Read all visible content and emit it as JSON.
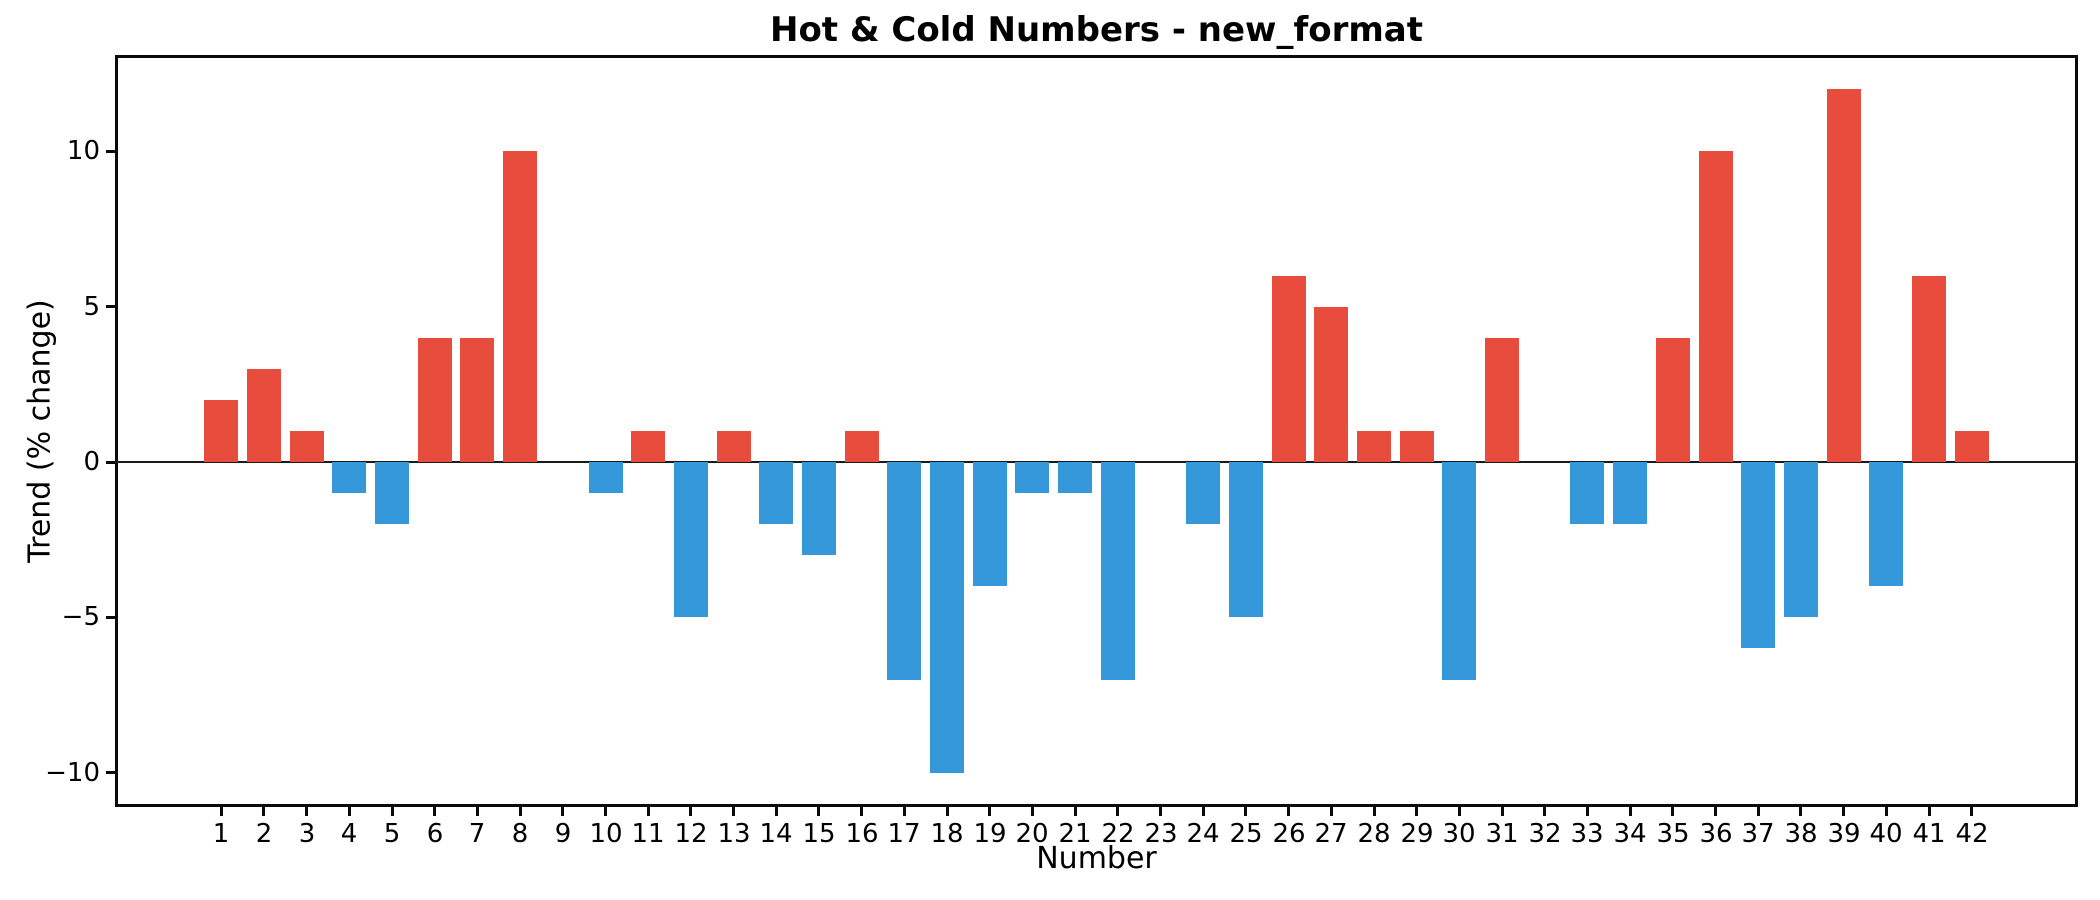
{
  "chart_data": {
    "type": "bar",
    "title": "Hot & Cold Numbers - new_format",
    "xlabel": "Number",
    "ylabel": "Trend (% change)",
    "categories": [
      1,
      2,
      3,
      4,
      5,
      6,
      7,
      8,
      9,
      10,
      11,
      12,
      13,
      14,
      15,
      16,
      17,
      18,
      19,
      20,
      21,
      22,
      23,
      24,
      25,
      26,
      27,
      28,
      29,
      30,
      31,
      32,
      33,
      34,
      35,
      36,
      37,
      38,
      39,
      40,
      41,
      42
    ],
    "values": [
      2,
      3,
      1,
      -1,
      -2,
      4,
      4,
      10,
      0,
      -1,
      1,
      -5,
      1,
      -2,
      -3,
      1,
      -7,
      -10,
      -4,
      -1,
      -1,
      -7,
      0,
      -2,
      -5,
      6,
      5,
      1,
      1,
      -7,
      4,
      0,
      -2,
      -2,
      4,
      10,
      -6,
      -5,
      12,
      -4,
      6,
      1
    ],
    "yticks": [
      -10,
      -5,
      0,
      5,
      10
    ],
    "ylim": [
      -11.1,
      13.1
    ],
    "xlim": [
      -1.49,
      44.49
    ],
    "bar_width": 0.8,
    "grid": false,
    "legend": "none",
    "colors": {
      "positive": "#e74c3c",
      "negative": "#3498db",
      "axis": "#0a0a0a",
      "text": "#000000",
      "background": "#ffffff"
    }
  }
}
